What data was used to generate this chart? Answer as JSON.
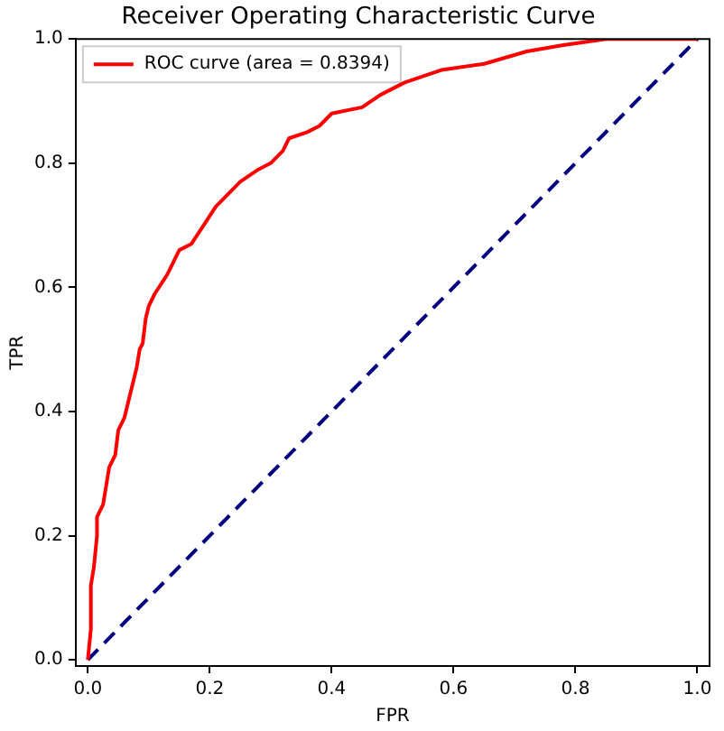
{
  "chart_data": {
    "type": "line",
    "title": "Receiver Operating Characteristic Curve",
    "xlabel": "FPR",
    "ylabel": "TPR",
    "xlim": [
      -0.02,
      1.02
    ],
    "ylim": [
      -0.01,
      1.0
    ],
    "xticks": [
      {
        "value": 0,
        "label": "0.0"
      },
      0.2,
      0.4,
      0.6,
      0.8,
      {
        "value": 1,
        "label": "1.0"
      }
    ],
    "yticks": [
      {
        "value": 0,
        "label": "0.0"
      },
      0.2,
      0.4,
      0.6,
      0.8,
      {
        "value": 1,
        "label": "1.0"
      }
    ],
    "legend": "top left",
    "grid": false,
    "series": [
      {
        "name": "ROC curve (area = 0.8394)",
        "color": "#ff0000",
        "line_style": "solid",
        "x": [
          0,
          0.005,
          0.005,
          0.01,
          0.015,
          0.015,
          0.025,
          0.03,
          0.035,
          0.045,
          0.05,
          0.06,
          0.07,
          0.08,
          0.085,
          0.09,
          0.095,
          0.1,
          0.11,
          0.13,
          0.15,
          0.17,
          0.19,
          0.21,
          0.23,
          0.25,
          0.28,
          0.3,
          0.32,
          0.33,
          0.36,
          0.38,
          0.4,
          0.45,
          0.48,
          0.52,
          0.58,
          0.65,
          0.72,
          0.78,
          0.85,
          1
        ],
        "values": [
          0,
          0.05,
          0.12,
          0.15,
          0.2,
          0.23,
          0.25,
          0.28,
          0.31,
          0.33,
          0.37,
          0.39,
          0.43,
          0.47,
          0.5,
          0.51,
          0.55,
          0.57,
          0.59,
          0.62,
          0.66,
          0.67,
          0.7,
          0.73,
          0.75,
          0.77,
          0.79,
          0.8,
          0.82,
          0.84,
          0.85,
          0.86,
          0.88,
          0.89,
          0.91,
          0.93,
          0.95,
          0.96,
          0.98,
          0.99,
          1,
          1
        ]
      },
      {
        "color": "#000080",
        "line_style": "dashed",
        "x": [
          0,
          1
        ],
        "values": [
          0,
          1
        ]
      }
    ]
  }
}
